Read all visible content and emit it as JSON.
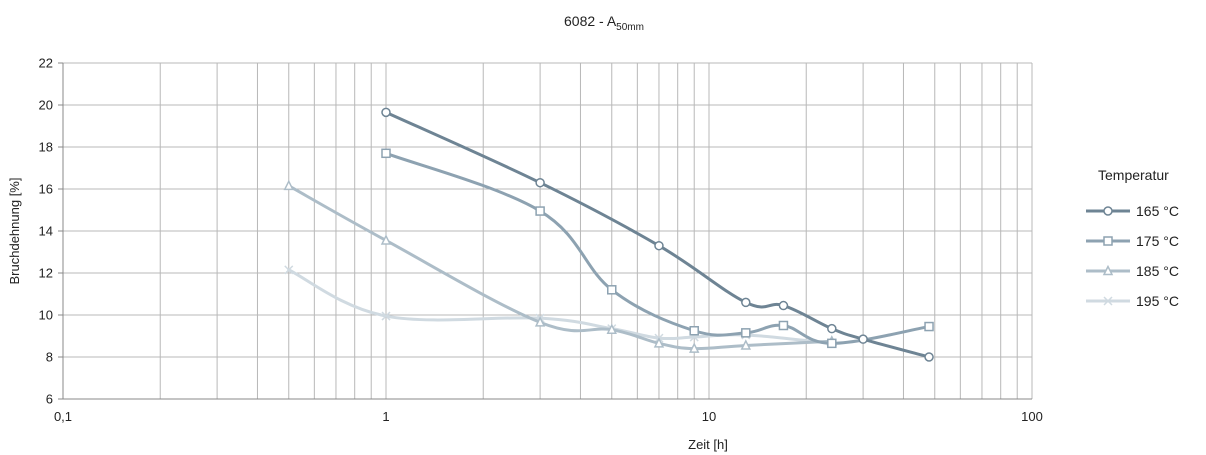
{
  "chart_data": {
    "type": "line",
    "title": "6082 - A",
    "title_subscript": "50mm",
    "xlabel": "Zeit [h]",
    "ylabel": "Bruchdehnung [%]",
    "x_scale": "log",
    "xlim": [
      0.1,
      100
    ],
    "ylim": [
      6,
      22
    ],
    "x_ticks": [
      {
        "value": 0.1,
        "label": "0,1"
      },
      {
        "value": 1,
        "label": "1"
      },
      {
        "value": 10,
        "label": "10"
      },
      {
        "value": 100,
        "label": "100"
      }
    ],
    "y_ticks": [
      {
        "value": 6,
        "label": "6"
      },
      {
        "value": 8,
        "label": "8"
      },
      {
        "value": 10,
        "label": "10"
      },
      {
        "value": 12,
        "label": "12"
      },
      {
        "value": 14,
        "label": "14"
      },
      {
        "value": 16,
        "label": "16"
      },
      {
        "value": 18,
        "label": "18"
      },
      {
        "value": 20,
        "label": "20"
      },
      {
        "value": 22,
        "label": "22"
      }
    ],
    "grid": true,
    "legend_title": "Temperatur",
    "legend_position": "right",
    "series": [
      {
        "name": "165 °C",
        "marker": "circle",
        "color": "#6e8494",
        "x": [
          1,
          3,
          7,
          13,
          17,
          24,
          30,
          48
        ],
        "y": [
          19.65,
          16.3,
          13.3,
          10.6,
          10.45,
          9.35,
          8.85,
          8.0
        ]
      },
      {
        "name": "175 °C",
        "marker": "square",
        "color": "#8da2b1",
        "x": [
          1,
          3,
          5,
          9,
          13,
          17,
          24,
          48
        ],
        "y": [
          17.7,
          14.95,
          11.2,
          9.25,
          9.15,
          9.5,
          8.65,
          9.45
        ]
      },
      {
        "name": "185 °C",
        "marker": "triangle",
        "color": "#adbdc8",
        "x": [
          0.5,
          1,
          3,
          5,
          7,
          9,
          13,
          24
        ],
        "y": [
          16.15,
          13.55,
          9.65,
          9.3,
          8.65,
          8.4,
          8.55,
          8.75
        ]
      },
      {
        "name": "195 °C",
        "marker": "cross",
        "color": "#d0dae1",
        "x": [
          0.5,
          1,
          3,
          5,
          7,
          9,
          13,
          24
        ],
        "y": [
          12.15,
          9.95,
          9.85,
          9.35,
          8.9,
          8.95,
          9.05,
          8.65
        ]
      }
    ]
  }
}
